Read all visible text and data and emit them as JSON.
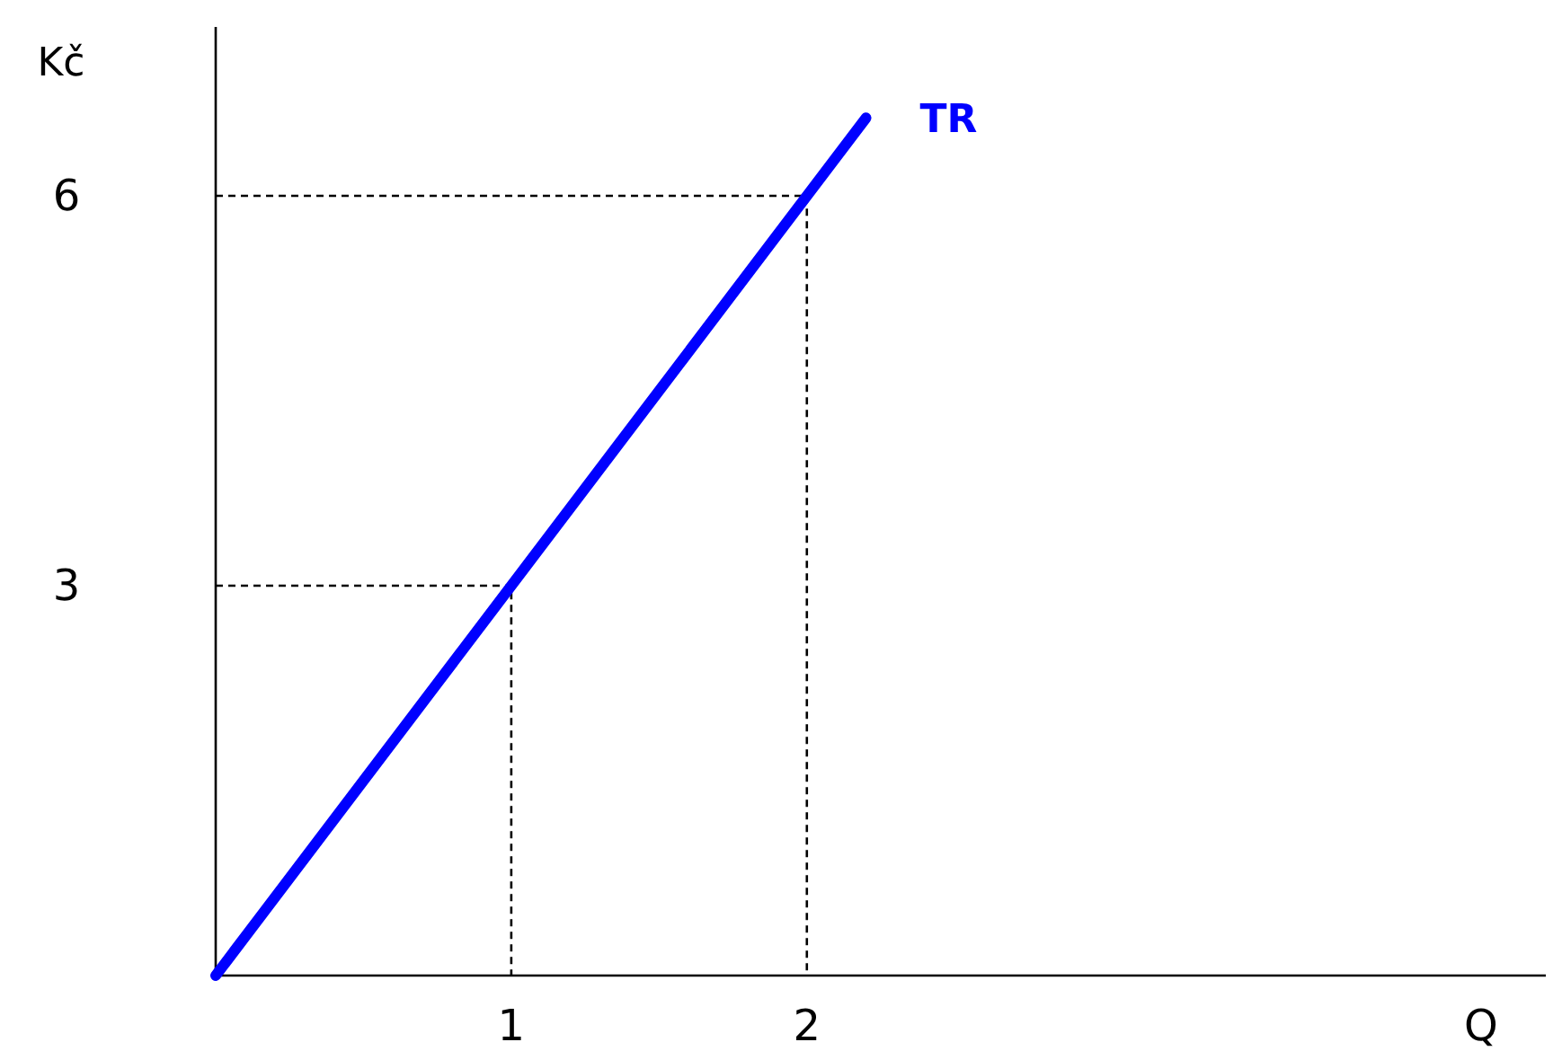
{
  "chart_data": {
    "type": "line",
    "xlabel": "Q",
    "ylabel": "Kč",
    "xlim": [
      0,
      4.5
    ],
    "ylim": [
      0,
      7.3
    ],
    "xticks": [
      1,
      2
    ],
    "yticks": [
      3,
      6
    ],
    "grid": false,
    "marker": "none",
    "series": [
      {
        "name": "TR",
        "color": "#0000ff",
        "x": [
          0,
          2.2
        ],
        "values": [
          0,
          6.6
        ],
        "line_style": "solid"
      },
      {
        "color": "#000000",
        "x": [
          0,
          1,
          1
        ],
        "values": [
          3,
          3,
          0
        ],
        "line_style": "dashed"
      },
      {
        "color": "#000000",
        "x": [
          0,
          2,
          2
        ],
        "values": [
          6,
          6,
          0
        ],
        "line_style": "dashed"
      }
    ]
  }
}
